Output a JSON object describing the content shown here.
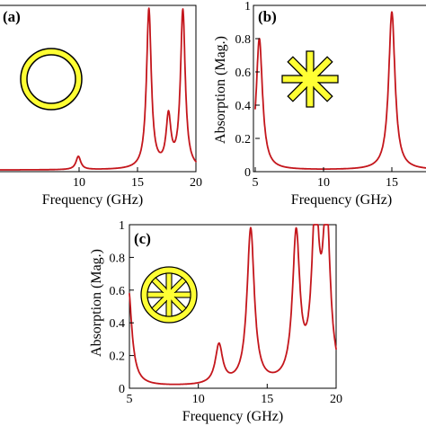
{
  "colors": {
    "series": "#c4161c",
    "icon_fill": "#ffff33",
    "icon_stroke": "#000000"
  },
  "chart_data": [
    {
      "type": "line",
      "panel": "(a)",
      "xlabel": "Frequency (GHz)",
      "ylabel": "",
      "xlim": [
        5,
        20
      ],
      "ylim": [
        0,
        1
      ],
      "x_ticks": [
        "10",
        "15",
        "20"
      ],
      "y_ticks": [],
      "grid": false,
      "icon": "ring-icon",
      "resonances": [
        {
          "f": 11.0,
          "amp": 0.08
        },
        {
          "f": 16.4,
          "amp": 0.96
        },
        {
          "f": 17.9,
          "amp": 0.3
        },
        {
          "f": 19.0,
          "amp": 0.95
        }
      ]
    },
    {
      "type": "line",
      "panel": "(b)",
      "xlabel": "Frequency (GHz)",
      "ylabel": "Absorption (Mag.)",
      "xlim": [
        5,
        17.5
      ],
      "ylim": [
        0,
        1
      ],
      "x_ticks": [
        "5",
        "10",
        "15"
      ],
      "y_ticks": [
        "0",
        "0.2",
        "0.4",
        "0.6",
        "0.8",
        "1"
      ],
      "grid": false,
      "icon": "star-icon",
      "resonances": [
        {
          "f": 5.3,
          "amp": 0.79
        },
        {
          "f": 15.0,
          "amp": 0.95
        }
      ]
    },
    {
      "type": "line",
      "panel": "(c)",
      "xlabel": "Frequency (GHz)",
      "ylabel": "Absorption (Mag.)",
      "xlim": [
        5,
        20
      ],
      "ylim": [
        0,
        1
      ],
      "x_ticks": [
        "5",
        "10",
        "15",
        "20"
      ],
      "y_ticks": [
        "0",
        "0.2",
        "0.4",
        "0.6",
        "0.8",
        "1"
      ],
      "grid": false,
      "icon": "spoked-wheel-icon",
      "resonances": [
        {
          "f": 4.9,
          "amp": 0.62
        },
        {
          "f": 11.5,
          "amp": 0.24
        },
        {
          "f": 13.8,
          "amp": 0.95
        },
        {
          "f": 17.1,
          "amp": 0.89
        },
        {
          "f": 18.5,
          "amp": 1.0
        },
        {
          "f": 19.3,
          "amp": 1.0
        }
      ]
    }
  ]
}
